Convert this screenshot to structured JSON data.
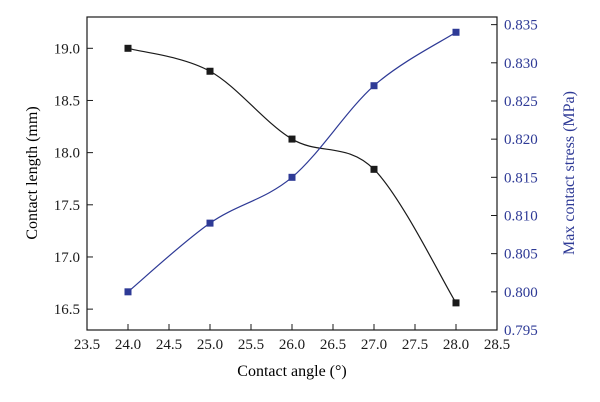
{
  "chart_data": {
    "type": "line",
    "title": "",
    "xlabel": "Contact angle (°)",
    "ylabel_left": "Contact length (mm)",
    "ylabel_right": "Max contact stress (MPa)",
    "xlim": [
      23.5,
      28.5
    ],
    "ylim_left": [
      16.3,
      19.3
    ],
    "ylim_right": [
      0.795,
      0.836
    ],
    "x_ticks": [
      "23.5",
      "24.0",
      "24.5",
      "25.0",
      "25.5",
      "26.0",
      "26.5",
      "27.0",
      "27.5",
      "28.0",
      "28.5"
    ],
    "y_left_ticks": [
      "16.5",
      "17.0",
      "17.5",
      "18.0",
      "18.5",
      "19.0"
    ],
    "y_right_ticks": [
      "0.795",
      "0.800",
      "0.805",
      "0.810",
      "0.815",
      "0.820",
      "0.825",
      "0.830",
      "0.835"
    ],
    "grid": false,
    "legend": false,
    "series": [
      {
        "axis": "left",
        "color": "#1a1a1a",
        "marker": "square",
        "x": [
          24.0,
          25.0,
          26.0,
          27.0,
          28.0
        ],
        "values": [
          19.0,
          18.78,
          18.13,
          17.84,
          16.56
        ]
      },
      {
        "axis": "right",
        "color": "#2e3a96",
        "marker": "square",
        "x": [
          24.0,
          25.0,
          26.0,
          27.0,
          28.0
        ],
        "values": [
          0.8,
          0.809,
          0.815,
          0.827,
          0.834
        ]
      }
    ]
  }
}
